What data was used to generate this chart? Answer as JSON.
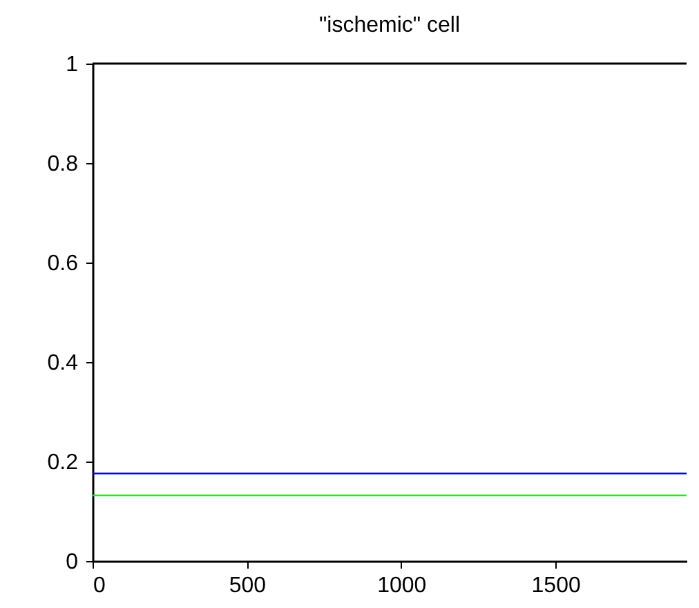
{
  "chart_data": {
    "type": "line",
    "title": "\"ischemic\" cell",
    "x": [
      0,
      1925
    ],
    "series": [
      {
        "color": "#0000ff",
        "values": [
          0.176,
          0.176
        ]
      },
      {
        "color": "#00ff00",
        "values": [
          0.132,
          0.132
        ]
      }
    ],
    "xlim": [
      0,
      1925
    ],
    "xticks": [
      0,
      500,
      1000,
      1500
    ],
    "ylim": [
      0,
      1
    ],
    "yticks": [
      0,
      0.2,
      0.4,
      0.6,
      0.8,
      1
    ],
    "grid": false,
    "legend": false,
    "marker": "none",
    "line_style": "solid"
  }
}
